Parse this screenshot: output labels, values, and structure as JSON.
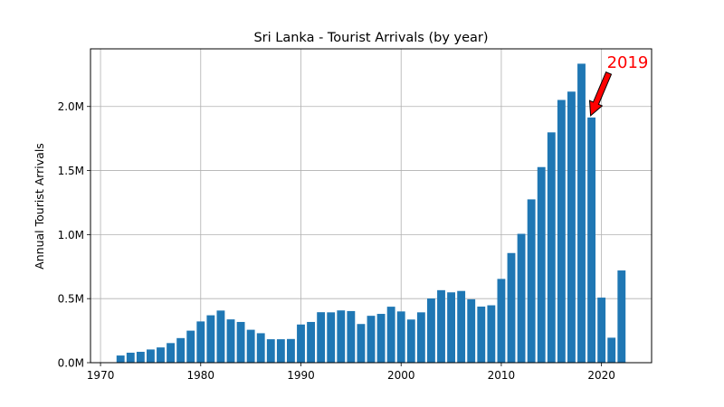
{
  "chart_data": {
    "type": "bar",
    "title": "Sri Lanka - Tourist Arrivals (by year)",
    "xlabel": "",
    "ylabel": "Annual Tourist Arrivals",
    "bar_color": "#1f77b4",
    "grid": true,
    "xlim": [
      1969,
      2025
    ],
    "ylim": [
      0,
      2450000
    ],
    "x_ticks": [
      1970,
      1980,
      1990,
      2000,
      2010,
      2020
    ],
    "x_tick_labels": [
      "1970",
      "1980",
      "1990",
      "2000",
      "2010",
      "2020"
    ],
    "y_ticks": [
      0,
      500000,
      1000000,
      1500000,
      2000000
    ],
    "y_tick_labels": [
      "0.0M",
      "0.5M",
      "1.0M",
      "1.5M",
      "2.0M"
    ],
    "x": [
      1972,
      1973,
      1974,
      1975,
      1976,
      1977,
      1978,
      1979,
      1980,
      1981,
      1982,
      1983,
      1984,
      1985,
      1986,
      1987,
      1988,
      1989,
      1990,
      1991,
      1992,
      1993,
      1994,
      1995,
      1996,
      1997,
      1998,
      1999,
      2000,
      2001,
      2002,
      2003,
      2004,
      2005,
      2006,
      2007,
      2008,
      2009,
      2010,
      2011,
      2012,
      2013,
      2014,
      2015,
      2016,
      2017,
      2018,
      2019,
      2020,
      2021,
      2022
    ],
    "values": [
      56000,
      78000,
      85000,
      103000,
      119000,
      153000,
      192000,
      250000,
      322000,
      370000,
      407000,
      338000,
      318000,
      257000,
      230000,
      183000,
      183000,
      185000,
      298000,
      318000,
      394000,
      393000,
      408000,
      403000,
      302000,
      366000,
      381000,
      437000,
      400000,
      337000,
      393000,
      501000,
      566000,
      549000,
      560000,
      495000,
      438000,
      448000,
      654000,
      856000,
      1006000,
      1275000,
      1527000,
      1798000,
      2051000,
      2116000,
      2334000,
      1914000,
      508000,
      195000,
      720000
    ],
    "annotation": {
      "text": "2019",
      "color": "#ff0000",
      "arrow_fill": "#ff0000",
      "arrow_stroke": "#000000",
      "target_x": 2019,
      "target_y": 1914000
    }
  }
}
